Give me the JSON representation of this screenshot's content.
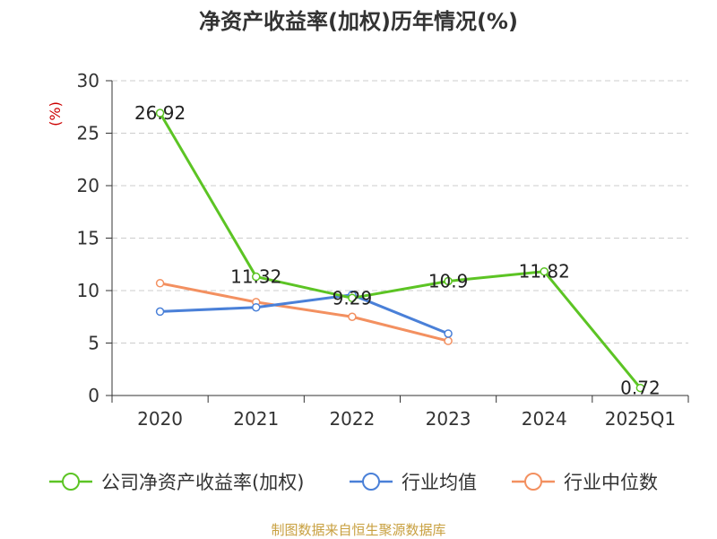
{
  "chart_data": {
    "type": "line",
    "title": "净资产收益率(加权)历年情况(%)",
    "ylabel": "(%)",
    "xlabel": "",
    "categories": [
      "2020",
      "2021",
      "2022",
      "2023",
      "2024",
      "2025Q1"
    ],
    "ylim": [
      0,
      30
    ],
    "yticks": [
      0,
      5,
      10,
      15,
      20,
      25,
      30
    ],
    "grid": true,
    "legend_position": "bottom",
    "series": [
      {
        "name": "公司净资产收益率(加权)",
        "color": "#5cc424",
        "values": [
          26.92,
          11.32,
          9.29,
          10.9,
          11.82,
          0.72
        ],
        "labels": [
          "26.92",
          "11.32",
          "9.29",
          "10.9",
          "11.82",
          "0.72"
        ]
      },
      {
        "name": "行业均值",
        "color": "#4a80d8",
        "values": [
          8.0,
          8.4,
          9.6,
          5.9,
          null,
          null
        ]
      },
      {
        "name": "行业中位数",
        "color": "#f39060",
        "values": [
          10.7,
          8.9,
          7.5,
          5.2,
          null,
          null
        ]
      }
    ]
  },
  "footer": {
    "source": "制图数据来自恒生聚源数据库"
  }
}
